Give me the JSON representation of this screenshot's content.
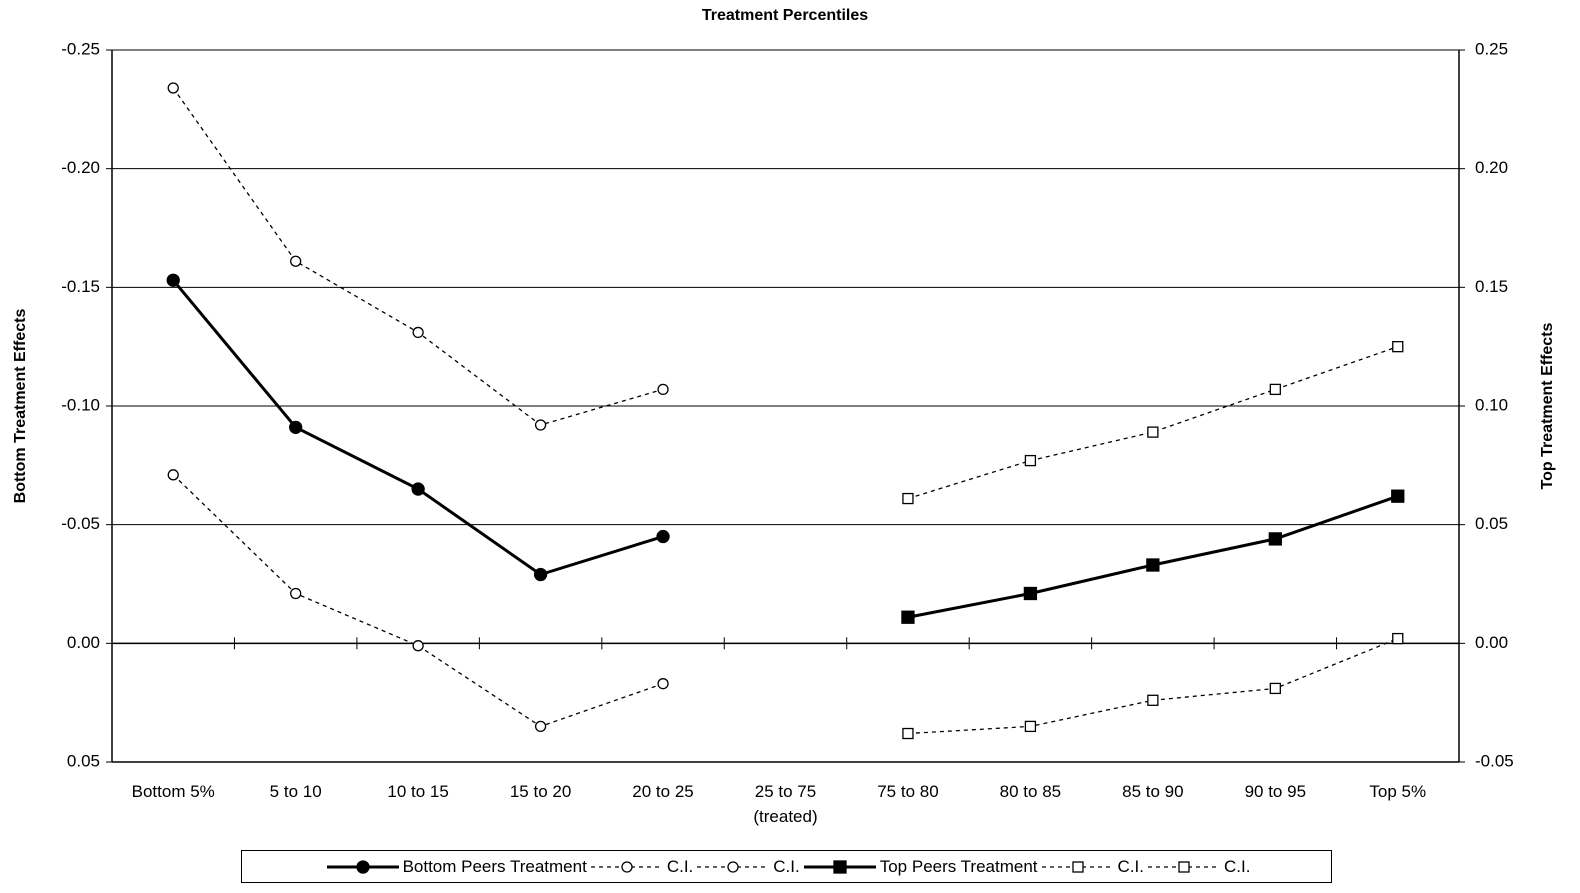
{
  "chart_data": {
    "type": "line",
    "title": "Treatment Percentiles",
    "y_label": "Bottom Treatment Effects",
    "y2_label": "Top Treatment Effects",
    "categories": [
      "Bottom 5%",
      "5 to 10",
      "10 to 15",
      "15 to 20",
      "20 to 25",
      "25 to 75\n(treated)",
      "75 to 80",
      "80 to 85",
      "85 to 90",
      "90 to 95",
      "Top 5%"
    ],
    "ylim": [
      0.05,
      -0.25
    ],
    "yticks": [
      -0.25,
      {
        "value": -0.2,
        "label": "-0.20"
      },
      -0.15,
      {
        "value": -0.1,
        "label": "-0.10"
      },
      -0.05,
      {
        "value": 0,
        "label": "0.00"
      },
      0.05
    ],
    "y2lim": [
      -0.05,
      0.25
    ],
    "y2ticks": [
      0.25,
      {
        "value": 0.2,
        "label": "0.20"
      },
      0.15,
      {
        "value": 0.1,
        "label": "0.10"
      },
      0.05,
      {
        "value": 0,
        "label": "0.00"
      },
      -0.05
    ],
    "grid": true,
    "legend": "bottom",
    "series": [
      {
        "name": "Bottom Peers Treatment",
        "color": "#000000",
        "marker": "circle-filled",
        "dash": false,
        "axis": "y",
        "values": [
          -0.153,
          -0.091,
          -0.065,
          -0.029,
          -0.045,
          null,
          null,
          null,
          null,
          null,
          null
        ]
      },
      {
        "name": "C.I.",
        "color": "#000000",
        "marker": "circle-open",
        "dash": true,
        "axis": "y",
        "values": [
          -0.234,
          -0.161,
          -0.131,
          -0.092,
          -0.107,
          null,
          null,
          null,
          null,
          null,
          null
        ]
      },
      {
        "name": "C.I.",
        "color": "#000000",
        "marker": "circle-open",
        "dash": true,
        "axis": "y",
        "values": [
          -0.071,
          -0.021,
          0.001,
          0.035,
          0.017,
          null,
          null,
          null,
          null,
          null,
          null
        ]
      },
      {
        "name": "Top Peers Treatment",
        "color": "#000000",
        "marker": "square-filled",
        "dash": false,
        "axis": "y2",
        "values": [
          null,
          null,
          null,
          null,
          null,
          null,
          0.011,
          0.021,
          0.033,
          0.044,
          0.062
        ]
      },
      {
        "name": "C.I.",
        "color": "#000000",
        "marker": "square-open",
        "dash": true,
        "axis": "y2",
        "values": [
          null,
          null,
          null,
          null,
          null,
          null,
          0.061,
          0.077,
          0.089,
          0.107,
          0.125
        ]
      },
      {
        "name": "C.I.",
        "color": "#000000",
        "marker": "square-open",
        "dash": true,
        "axis": "y2",
        "values": [
          null,
          null,
          null,
          null,
          null,
          null,
          -0.038,
          -0.035,
          -0.024,
          -0.019,
          0.002
        ]
      }
    ]
  }
}
